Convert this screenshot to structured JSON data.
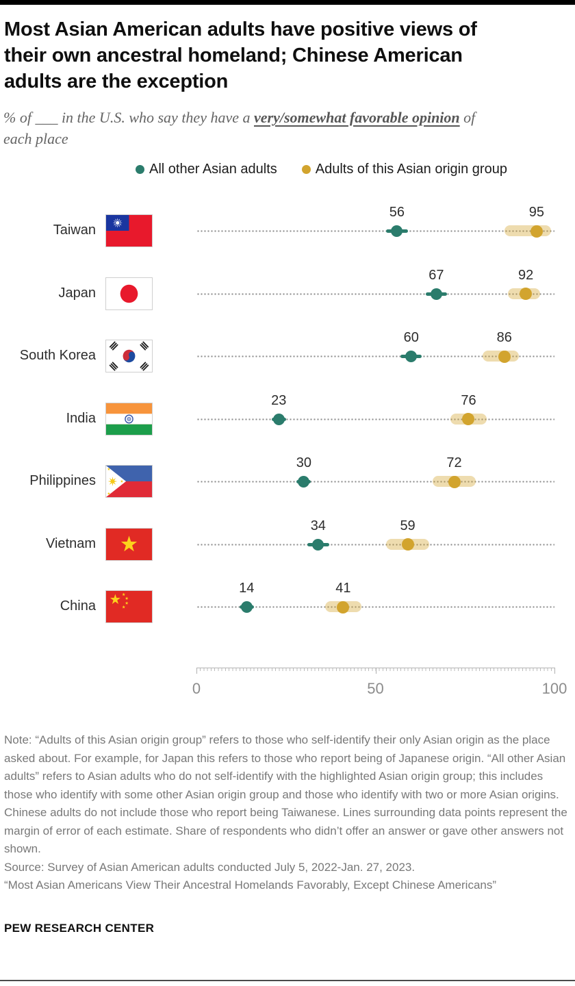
{
  "header": {
    "title_lines": [
      "Most Asian American adults have positive views of",
      "their own ancestral homeland; Chinese American",
      "adults are the exception"
    ],
    "subtitle_prefix": "% of ___ in the U.S. who say they have a ",
    "subtitle_bold": "very/somewhat favorable opinion",
    "subtitle_suffix": " of each place"
  },
  "legend": [
    {
      "label": "All other Asian adults",
      "color": "#2b7c6c"
    },
    {
      "label": "Adults of this Asian origin group",
      "color": "#d2a42e"
    }
  ],
  "colors": {
    "other_dot": "#2b7c6c",
    "origin_dot": "#d2a42e",
    "origin_band": "rgba(210,164,46,0.38)",
    "dotted_line": "#8e8e8e"
  },
  "chart_data": {
    "type": "scatter",
    "subtype": "dumbbell dot plot with margin-of-error bands",
    "title": "Most Asian American adults have positive views of their own ancestral homeland; Chinese American adults are the exception",
    "subtitle": "% of ___ in the U.S. who say they have a very/somewhat favorable opinion of each place",
    "legend_position": "top",
    "grid": "dotted horizontal guide line per category",
    "categories": [
      "Taiwan",
      "Japan",
      "South Korea",
      "India",
      "Philippines",
      "Vietnam",
      "China"
    ],
    "series": [
      {
        "name": "All other Asian adults",
        "color": "#2b7c6c",
        "values": [
          56,
          67,
          60,
          23,
          30,
          34,
          14
        ]
      },
      {
        "name": "Adults of this Asian origin group",
        "color": "#d2a42e",
        "values": [
          95,
          92,
          86,
          76,
          72,
          59,
          41
        ]
      }
    ],
    "axis": {
      "min": 0,
      "max": 100,
      "ticks": [
        0,
        50,
        100
      ],
      "tick_labels": [
        "0",
        "50",
        "100"
      ]
    },
    "rows": [
      {
        "country": "Taiwan",
        "flag": "taiwan",
        "other": 56,
        "other_moe": [
          53,
          59
        ],
        "origin": 95,
        "origin_moe": [
          86,
          99
        ]
      },
      {
        "country": "Japan",
        "flag": "japan",
        "other": 67,
        "other_moe": [
          64,
          70
        ],
        "origin": 92,
        "origin_moe": [
          87,
          96
        ]
      },
      {
        "country": "South Korea",
        "flag": "southkorea",
        "other": 60,
        "other_moe": [
          57,
          63
        ],
        "origin": 86,
        "origin_moe": [
          80,
          90
        ]
      },
      {
        "country": "India",
        "flag": "india",
        "other": 23,
        "other_moe": [
          21,
          25
        ],
        "origin": 76,
        "origin_moe": [
          71,
          81
        ]
      },
      {
        "country": "Philippines",
        "flag": "philippines",
        "other": 30,
        "other_moe": [
          28,
          32
        ],
        "origin": 72,
        "origin_moe": [
          66,
          78
        ]
      },
      {
        "country": "Vietnam",
        "flag": "vietnam",
        "other": 34,
        "other_moe": [
          31,
          37
        ],
        "origin": 59,
        "origin_moe": [
          53,
          65
        ]
      },
      {
        "country": "China",
        "flag": "china",
        "other": 14,
        "other_moe": [
          12,
          16
        ],
        "origin": 41,
        "origin_moe": [
          36,
          46
        ]
      }
    ]
  },
  "footer": {
    "note": "Note: “Adults of this Asian origin group” refers to those who self-identify their only Asian origin as the place asked about. For example, for Japan this refers to those who report being of Japanese origin. “All other Asian adults” refers to Asian adults who do not self-identify with the highlighted Asian origin group; this includes those who identify with some other Asian origin group and those who identify with two or more Asian origins. Chinese adults do not include those who report being Taiwanese. Lines surrounding data points represent the margin of error of each estimate. Share of respondents who didn’t offer an answer or gave other answers not shown.",
    "source": "Source: Survey of Asian American adults conducted July 5, 2022-Jan. 27, 2023.",
    "report": "“Most Asian Americans View Their Ancestral Homelands Favorably, Except Chinese Americans”",
    "brand": "PEW RESEARCH CENTER"
  }
}
